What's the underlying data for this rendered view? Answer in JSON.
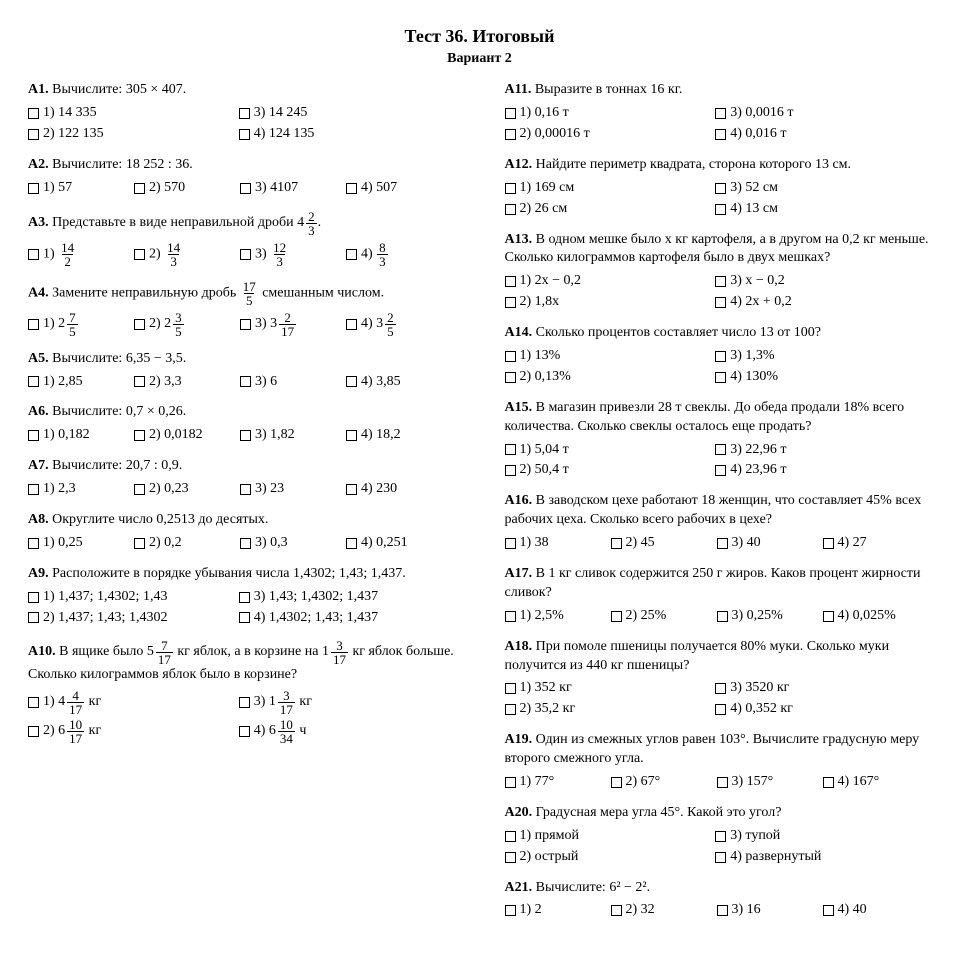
{
  "title": "Тест 36. Итоговый",
  "subtitle": "Вариант 2",
  "left": [
    {
      "num": "А1.",
      "text": "Вычислите: 305 × 407.",
      "opts": [
        "1) 14 335",
        "2) 122 135",
        "3) 14 245",
        "4) 124 135"
      ],
      "layout": "2x2"
    },
    {
      "num": "А2.",
      "text": "Вычислите: 18 252 : 36.",
      "opts": [
        "1) 57",
        "2) 570",
        "3) 4107",
        "4) 507"
      ],
      "layout": "4"
    },
    {
      "num": "А3.",
      "text": "Представьте в виде неправильной дроби {mixed:4:2:3}.",
      "opts": [
        "1) {frac:14:2}",
        "2) {frac:14:3}",
        "3) {frac:12:3}",
        "4) {frac:8:3}"
      ],
      "layout": "4"
    },
    {
      "num": "А4.",
      "text": "Замените неправильную дробь {frac:17:5} смешанным числом.",
      "opts": [
        "1) {mixed:2:7:5}",
        "2) {mixed:2:3:5}",
        "3) {mixed:3:2:17}",
        "4) {mixed:3:2:5}"
      ],
      "layout": "4"
    },
    {
      "num": "А5.",
      "text": "Вычислите: 6,35 − 3,5.",
      "opts": [
        "1) 2,85",
        "2) 3,3",
        "3) 6",
        "4) 3,85"
      ],
      "layout": "4"
    },
    {
      "num": "А6.",
      "text": "Вычислите: 0,7 × 0,26.",
      "opts": [
        "1) 0,182",
        "2) 0,0182",
        "3) 1,82",
        "4) 18,2"
      ],
      "layout": "4"
    },
    {
      "num": "А7.",
      "text": "Вычислите: 20,7 : 0,9.",
      "opts": [
        "1) 2,3",
        "2) 0,23",
        "3) 23",
        "4) 230"
      ],
      "layout": "4"
    },
    {
      "num": "А8.",
      "text": "Округлите число 0,2513 до десятых.",
      "opts": [
        "1) 0,25",
        "2) 0,2",
        "3) 0,3",
        "4) 0,251"
      ],
      "layout": "4"
    },
    {
      "num": "А9.",
      "text": "Расположите в порядке убывания числа 1,4302; 1,43; 1,437.",
      "opts": [
        "1) 1,437; 1,4302; 1,43",
        "2) 1,437; 1,43; 1,4302",
        "3) 1,43; 1,4302; 1,437",
        "4) 1,4302; 1,43; 1,437"
      ],
      "layout": "2x2"
    },
    {
      "num": "А10.",
      "text": "В ящике было {mixed:5:7:17} кг яблок, а в корзине на {mixed:1:3:17} кг яблок больше. Сколько килограммов яблок было в корзине?",
      "opts": [
        "1) {mixed:4:4:17} кг",
        "2) {mixed:6:10:17} кг",
        "3) {mixed:1:3:17} кг",
        "4) {mixed:6:10:34} ч"
      ],
      "layout": "2x2"
    }
  ],
  "right": [
    {
      "num": "А11.",
      "text": "Выразите в тоннах 16 кг.",
      "opts": [
        "1) 0,16 т",
        "2) 0,00016 т",
        "3) 0,0016 т",
        "4) 0,016 т"
      ],
      "layout": "2x2"
    },
    {
      "num": "А12.",
      "text": "Найдите периметр квадрата, сторона которого 13 см.",
      "opts": [
        "1) 169 см",
        "2) 26 см",
        "3) 52 см",
        "4) 13 см"
      ],
      "layout": "2x2"
    },
    {
      "num": "А13.",
      "text": "В одном мешке было x кг картофеля, а в другом на 0,2 кг меньше. Сколько килограммов картофеля было в двух мешках?",
      "opts": [
        "1) 2x − 0,2",
        "2) 1,8x",
        "3) x − 0,2",
        "4) 2x + 0,2"
      ],
      "layout": "2x2"
    },
    {
      "num": "А14.",
      "text": "Сколько процентов составляет число 13 от 100?",
      "opts": [
        "1) 13%",
        "2) 0,13%",
        "3) 1,3%",
        "4) 130%"
      ],
      "layout": "2x2"
    },
    {
      "num": "А15.",
      "text": "В магазин привезли 28 т свеклы. До обеда продали 18% всего количества. Сколько свеклы осталось еще продать?",
      "opts": [
        "1) 5,04 т",
        "2) 50,4 т",
        "3) 22,96 т",
        "4) 23,96 т"
      ],
      "layout": "2x2"
    },
    {
      "num": "А16.",
      "text": "В заводском цехе работают 18 женщин, что составляет 45% всех рабочих цеха. Сколько всего рабочих в цехе?",
      "opts": [
        "1) 38",
        "2) 45",
        "3) 40",
        "4) 27"
      ],
      "layout": "4"
    },
    {
      "num": "А17.",
      "text": "В 1 кг сливок содержится 250 г жиров. Каков процент жирности сливок?",
      "opts": [
        "1) 2,5%",
        "2) 25%",
        "3) 0,25%",
        "4) 0,025%"
      ],
      "layout": "4"
    },
    {
      "num": "А18.",
      "text": "При помоле пшеницы получается 80% муки. Сколько муки получится из 440 кг пшеницы?",
      "opts": [
        "1) 352 кг",
        "2) 35,2 кг",
        "3) 3520 кг",
        "4) 0,352 кг"
      ],
      "layout": "2x2"
    },
    {
      "num": "А19.",
      "text": "Один из смежных углов равен 103°. Вычислите градусную меру второго смежного угла.",
      "opts": [
        "1) 77°",
        "2) 67°",
        "3) 157°",
        "4) 167°"
      ],
      "layout": "4"
    },
    {
      "num": "А20.",
      "text": "Градусная мера угла 45°. Какой это угол?",
      "opts": [
        "1) прямой",
        "2) острый",
        "3) тупой",
        "4) развернутый"
      ],
      "layout": "2x2"
    },
    {
      "num": "А21.",
      "text": "Вычислите: 6² − 2².",
      "opts": [
        "1) 2",
        "2) 32",
        "3) 16",
        "4) 40"
      ],
      "layout": "4"
    }
  ]
}
